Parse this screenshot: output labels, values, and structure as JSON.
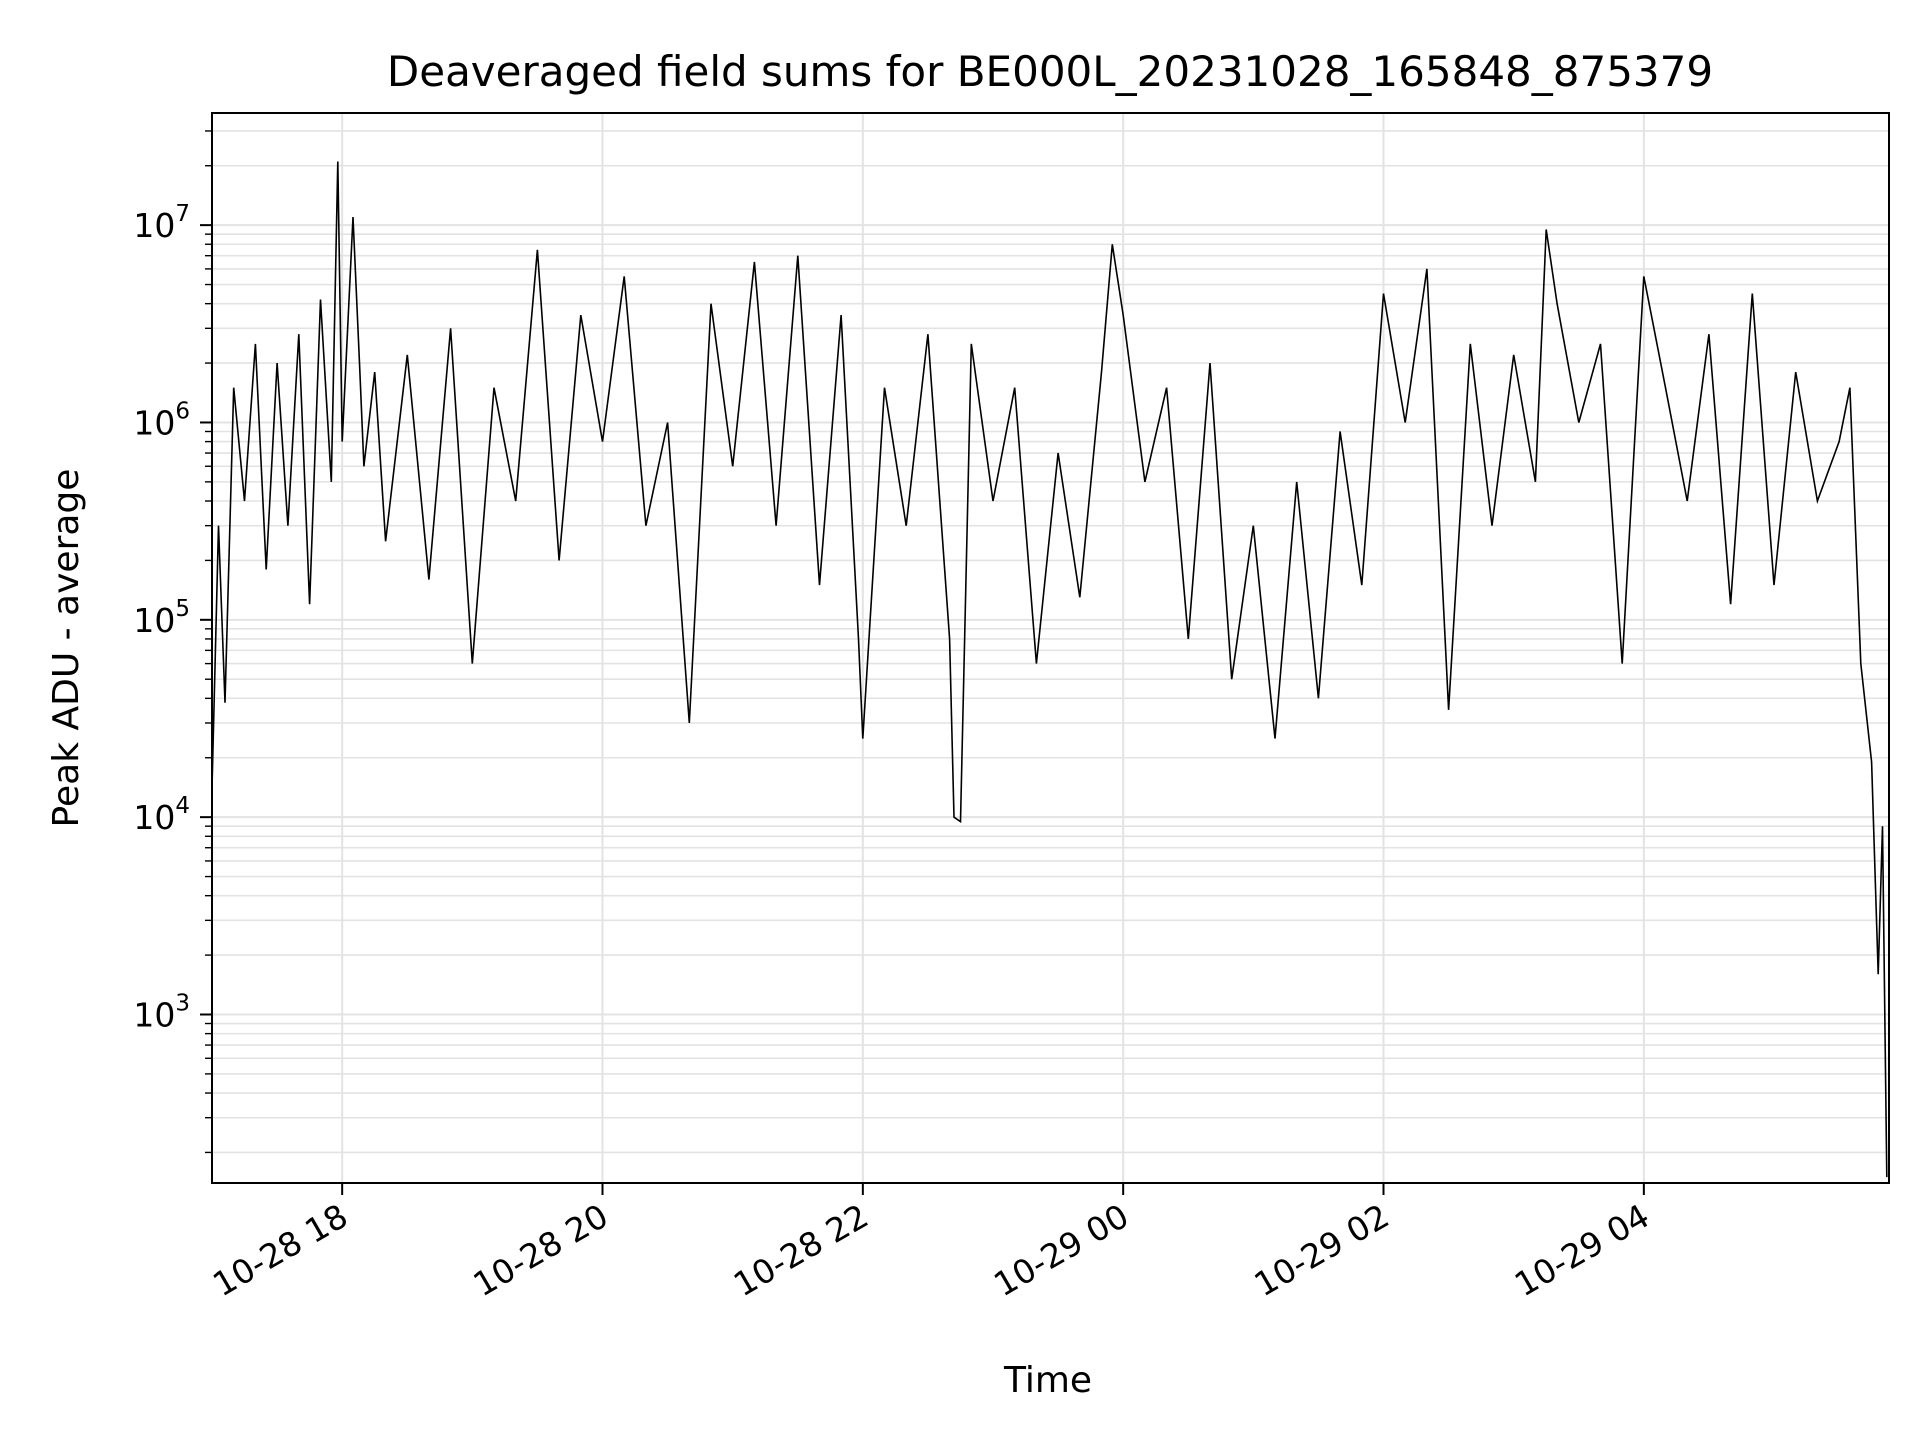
{
  "chart_data": {
    "type": "line",
    "title": "Deaveraged field sums for BE000L_20231028_165848_875379",
    "xlabel": "Time",
    "ylabel": "Peak ADU - average",
    "x_axis": {
      "kind": "datetime",
      "range": [
        "2023-10-28 17:00",
        "2023-10-29 05:53"
      ],
      "ticks": [
        "2023-10-28 18:00",
        "2023-10-28 20:00",
        "2023-10-28 22:00",
        "2023-10-29 00:00",
        "2023-10-29 02:00",
        "2023-10-29 04:00"
      ],
      "tick_labels": [
        "10-28 18",
        "10-28 20",
        "10-28 22",
        "10-29 00",
        "10-29 02",
        "10-29 04"
      ]
    },
    "y_axis": {
      "scale": "log",
      "range": [
        140,
        37000000
      ],
      "ticks": [
        1000,
        10000,
        100000,
        1000000,
        10000000
      ],
      "tick_labels": [
        {
          "base": "10",
          "exp": "3"
        },
        {
          "base": "10",
          "exp": "4"
        },
        {
          "base": "10",
          "exp": "5"
        },
        {
          "base": "10",
          "exp": "6"
        },
        {
          "base": "10",
          "exp": "7"
        }
      ]
    },
    "grid": true,
    "line_color": "#000000",
    "series": [
      {
        "x": [
          "2023-10-28 17:00",
          "2023-10-28 17:03",
          "2023-10-28 17:06",
          "2023-10-28 17:10",
          "2023-10-28 17:15",
          "2023-10-28 17:20",
          "2023-10-28 17:25",
          "2023-10-28 17:30",
          "2023-10-28 17:35",
          "2023-10-28 17:40",
          "2023-10-28 17:45",
          "2023-10-28 17:50",
          "2023-10-28 17:55",
          "2023-10-28 17:58",
          "2023-10-28 18:00",
          "2023-10-28 18:05",
          "2023-10-28 18:08",
          "2023-10-28 18:10",
          "2023-10-28 18:15",
          "2023-10-28 18:20",
          "2023-10-28 18:30",
          "2023-10-28 18:40",
          "2023-10-28 18:50",
          "2023-10-28 19:00",
          "2023-10-28 19:10",
          "2023-10-28 19:20",
          "2023-10-28 19:30",
          "2023-10-28 19:40",
          "2023-10-28 19:50",
          "2023-10-28 20:00",
          "2023-10-28 20:10",
          "2023-10-28 20:20",
          "2023-10-28 20:30",
          "2023-10-28 20:40",
          "2023-10-28 20:50",
          "2023-10-28 21:00",
          "2023-10-28 21:10",
          "2023-10-28 21:20",
          "2023-10-28 21:30",
          "2023-10-28 21:40",
          "2023-10-28 21:50",
          "2023-10-28 21:58",
          "2023-10-28 22:00",
          "2023-10-28 22:10",
          "2023-10-28 22:20",
          "2023-10-28 22:30",
          "2023-10-28 22:40",
          "2023-10-28 22:42",
          "2023-10-28 22:45",
          "2023-10-28 22:50",
          "2023-10-28 23:00",
          "2023-10-28 23:10",
          "2023-10-28 23:20",
          "2023-10-28 23:30",
          "2023-10-28 23:40",
          "2023-10-28 23:50",
          "2023-10-28 23:55",
          "2023-10-29 00:00",
          "2023-10-29 00:10",
          "2023-10-29 00:20",
          "2023-10-29 00:30",
          "2023-10-29 00:40",
          "2023-10-29 00:50",
          "2023-10-29 01:00",
          "2023-10-29 01:10",
          "2023-10-29 01:20",
          "2023-10-29 01:30",
          "2023-10-29 01:40",
          "2023-10-29 01:50",
          "2023-10-29 02:00",
          "2023-10-29 02:10",
          "2023-10-29 02:20",
          "2023-10-29 02:30",
          "2023-10-29 02:40",
          "2023-10-29 02:50",
          "2023-10-29 03:00",
          "2023-10-29 03:10",
          "2023-10-29 03:15",
          "2023-10-29 03:20",
          "2023-10-29 03:30",
          "2023-10-29 03:40",
          "2023-10-29 03:50",
          "2023-10-29 04:00",
          "2023-10-29 04:10",
          "2023-10-29 04:20",
          "2023-10-29 04:30",
          "2023-10-29 04:40",
          "2023-10-29 04:50",
          "2023-10-29 05:00",
          "2023-10-29 05:10",
          "2023-10-29 05:20",
          "2023-10-29 05:30",
          "2023-10-29 05:35",
          "2023-10-29 05:40",
          "2023-10-29 05:45",
          "2023-10-29 05:48",
          "2023-10-29 05:50",
          "2023-10-29 05:52"
        ],
        "y": [
          14000,
          300000,
          38000,
          1500000,
          400000,
          2500000,
          180000,
          2000000,
          300000,
          2800000,
          120000,
          4200000,
          500000,
          21000000,
          800000,
          11000000,
          2000000,
          600000,
          1800000,
          250000,
          2200000,
          160000,
          3000000,
          60000,
          1500000,
          400000,
          7500000,
          200000,
          3500000,
          800000,
          5500000,
          300000,
          1000000,
          30000,
          4000000,
          600000,
          6500000,
          300000,
          7000000,
          150000,
          3500000,
          80000,
          25000,
          1500000,
          300000,
          2800000,
          80000,
          10000,
          9500,
          2500000,
          400000,
          1500000,
          60000,
          700000,
          130000,
          1800000,
          8000000,
          3500000,
          500000,
          1500000,
          80000,
          2000000,
          50000,
          300000,
          25000,
          500000,
          40000,
          900000,
          150000,
          4500000,
          1000000,
          6000000,
          35000,
          2500000,
          300000,
          2200000,
          500000,
          9500000,
          4000000,
          1000000,
          2500000,
          60000,
          5500000,
          1500000,
          400000,
          2800000,
          120000,
          4500000,
          150000,
          1800000,
          400000,
          800000,
          1500000,
          60000,
          19000,
          1600,
          9000,
          150
        ]
      }
    ]
  }
}
